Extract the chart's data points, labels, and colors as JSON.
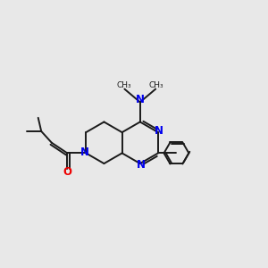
{
  "bg_color": "#e8e8e8",
  "bond_color": "#1a1a1a",
  "n_color": "#0000ee",
  "o_color": "#ee0000",
  "lw": 1.4,
  "xlim": [
    -4,
    7
  ],
  "ylim": [
    -3.5,
    4.5
  ]
}
